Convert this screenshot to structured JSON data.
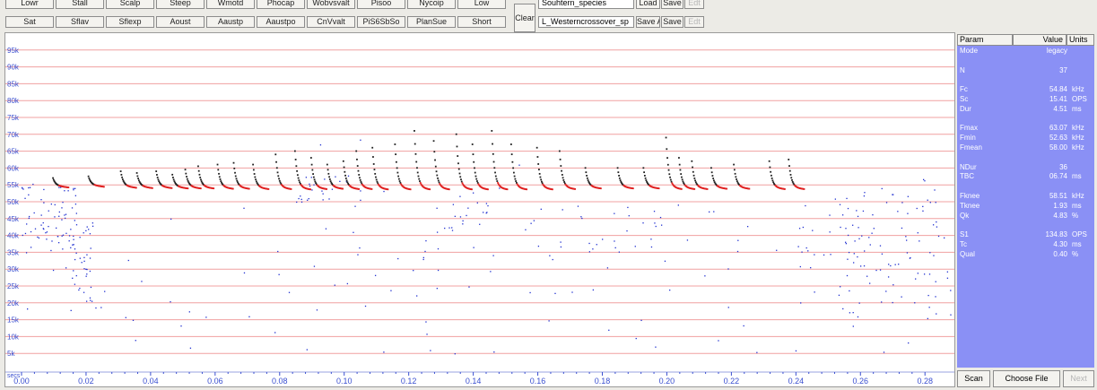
{
  "toolbar": {
    "row1": [
      "Lowr",
      "Stall",
      "Scalp",
      "Steep",
      "Wmotd",
      "Phocap",
      "Wobvsvalt",
      "Pisoo",
      "Nycoip",
      "Low"
    ],
    "row2": [
      "Sat",
      "Sflav",
      "Sflexp",
      "Aoust",
      "Aaustp",
      "Aaustpo",
      "CnVvalt",
      "PiS6SbSo",
      "PlanSue",
      "Short"
    ],
    "clear_label": "Clear",
    "file_field_top": "Souhtern_species",
    "file_field_bottom": "L_Westerncrossover_sp",
    "load_label": "Load",
    "save_label_top": "Save",
    "edit_label_top": "Edt",
    "save_as_label": "Save As",
    "save_label_bottom": "Save",
    "edit_label_bottom": "Edt"
  },
  "panel": {
    "headers": [
      "Param",
      "Value",
      "Units"
    ],
    "rows": [
      {
        "name": "Mode",
        "value": "legacy",
        "unit": ""
      },
      {
        "name": "",
        "value": "",
        "unit": ""
      },
      {
        "name": "N",
        "value": "37",
        "unit": ""
      },
      {
        "name": "",
        "value": "",
        "unit": ""
      },
      {
        "name": "Fc",
        "value": "54.84",
        "unit": "kHz"
      },
      {
        "name": "Sc",
        "value": "15.41",
        "unit": "OPS"
      },
      {
        "name": "Dur",
        "value": "4.51",
        "unit": "ms"
      },
      {
        "name": "",
        "value": "",
        "unit": ""
      },
      {
        "name": "Fmax",
        "value": "63.07",
        "unit": "kHz"
      },
      {
        "name": "Fmin",
        "value": "52.63",
        "unit": "kHz"
      },
      {
        "name": "Fmean",
        "value": "58.00",
        "unit": "kHz"
      },
      {
        "name": "",
        "value": "",
        "unit": ""
      },
      {
        "name": "NDur",
        "value": "36",
        "unit": ""
      },
      {
        "name": "TBC",
        "value": "06.74",
        "unit": "ms"
      },
      {
        "name": "",
        "value": "",
        "unit": ""
      },
      {
        "name": "Fknee",
        "value": "58.51",
        "unit": "kHz"
      },
      {
        "name": "Tknee",
        "value": "1.93",
        "unit": "ms"
      },
      {
        "name": "Qk",
        "value": "4.83",
        "unit": "%"
      },
      {
        "name": "",
        "value": "",
        "unit": ""
      },
      {
        "name": "S1",
        "value": "134.83",
        "unit": "OPS"
      },
      {
        "name": "Tc",
        "value": "4.30",
        "unit": "ms"
      },
      {
        "name": "Qual",
        "value": "0.40",
        "unit": "%"
      }
    ],
    "scan_label": "Scan",
    "choose_label": "Choose File",
    "next_label": "Next"
  },
  "chart_data": {
    "type": "scatter",
    "xlabel": "secs",
    "ylabel": "",
    "xlim": [
      0.0,
      0.288
    ],
    "ylim": [
      0,
      100000
    ],
    "y_ticks": [
      5000,
      10000,
      15000,
      20000,
      25000,
      30000,
      35000,
      40000,
      45000,
      50000,
      55000,
      60000,
      65000,
      70000,
      75000,
      80000,
      85000,
      90000,
      95000
    ],
    "y_tick_labels": [
      "5k",
      "10k",
      "15k",
      "20k",
      "25k",
      "30k",
      "35k",
      "40k",
      "45k",
      "50k",
      "55k",
      "60k",
      "65k",
      "70k",
      "75k",
      "80k",
      "85k",
      "90k",
      "95k"
    ],
    "x_ticks": [
      0.0,
      0.02,
      0.04,
      0.06,
      0.08,
      0.1,
      0.12,
      0.14,
      0.16,
      0.18,
      0.2,
      0.22,
      0.24,
      0.26,
      0.28
    ],
    "x_tick_labels": [
      "0.00",
      "0.02",
      "0.04",
      "0.06",
      "0.08",
      "0.10",
      "0.12",
      "0.14",
      "0.16",
      "0.18",
      "0.20",
      "0.22",
      "0.24",
      "0.26",
      "0.28"
    ],
    "grid": "horizontal",
    "colors": {
      "gridline": "#f0a0a0",
      "call": "#e02020",
      "call_start": "#202020",
      "noise": "#2030d0",
      "axis_text": "#3a4fd0"
    },
    "calls": [
      {
        "t": 0.0095,
        "fmax": 57000,
        "fmin": 54800
      },
      {
        "t": 0.0205,
        "fmax": 57500,
        "fmin": 55000
      },
      {
        "t": 0.0305,
        "fmax": 59000,
        "fmin": 54700
      },
      {
        "t": 0.0355,
        "fmax": 58500,
        "fmin": 54600
      },
      {
        "t": 0.0415,
        "fmax": 59000,
        "fmin": 54600
      },
      {
        "t": 0.0465,
        "fmax": 58000,
        "fmin": 54500
      },
      {
        "t": 0.0505,
        "fmax": 59500,
        "fmin": 54500
      },
      {
        "t": 0.0545,
        "fmax": 60500,
        "fmin": 54500
      },
      {
        "t": 0.0605,
        "fmax": 61000,
        "fmin": 54400
      },
      {
        "t": 0.0655,
        "fmax": 61500,
        "fmin": 54400
      },
      {
        "t": 0.0715,
        "fmax": 61000,
        "fmin": 54300
      },
      {
        "t": 0.0785,
        "fmax": 64000,
        "fmin": 54300
      },
      {
        "t": 0.0845,
        "fmax": 65000,
        "fmin": 54200
      },
      {
        "t": 0.0895,
        "fmax": 63000,
        "fmin": 54300
      },
      {
        "t": 0.0945,
        "fmax": 61000,
        "fmin": 54400
      },
      {
        "t": 0.0995,
        "fmax": 62000,
        "fmin": 54300
      },
      {
        "t": 0.1035,
        "fmax": 65000,
        "fmin": 54300
      },
      {
        "t": 0.1085,
        "fmax": 66000,
        "fmin": 54200
      },
      {
        "t": 0.1155,
        "fmax": 67000,
        "fmin": 54200
      },
      {
        "t": 0.1215,
        "fmax": 71000,
        "fmin": 54200
      },
      {
        "t": 0.1275,
        "fmax": 68000,
        "fmin": 54200
      },
      {
        "t": 0.1345,
        "fmax": 70000,
        "fmin": 54200
      },
      {
        "t": 0.1395,
        "fmax": 67000,
        "fmin": 54200
      },
      {
        "t": 0.1455,
        "fmax": 71000,
        "fmin": 54200
      },
      {
        "t": 0.1515,
        "fmax": 67000,
        "fmin": 54200
      },
      {
        "t": 0.1595,
        "fmax": 66000,
        "fmin": 54200
      },
      {
        "t": 0.1665,
        "fmax": 65000,
        "fmin": 54300
      },
      {
        "t": 0.1745,
        "fmax": 60000,
        "fmin": 54500
      },
      {
        "t": 0.1845,
        "fmax": 60000,
        "fmin": 54500
      },
      {
        "t": 0.1925,
        "fmax": 60000,
        "fmin": 54500
      },
      {
        "t": 0.1995,
        "fmax": 69000,
        "fmin": 54300
      },
      {
        "t": 0.2035,
        "fmax": 63000,
        "fmin": 54300
      },
      {
        "t": 0.2075,
        "fmax": 62000,
        "fmin": 54300
      },
      {
        "t": 0.2135,
        "fmax": 60000,
        "fmin": 54400
      },
      {
        "t": 0.2205,
        "fmax": 61000,
        "fmin": 54400
      },
      {
        "t": 0.2315,
        "fmax": 62000,
        "fmin": 54300
      },
      {
        "t": 0.2375,
        "fmax": 62500,
        "fmin": 54300
      }
    ],
    "noise_clusters": [
      {
        "t0": 0.0,
        "t1": 0.018,
        "f0": 35000,
        "f1": 56000,
        "n": 70
      },
      {
        "t0": 0.014,
        "t1": 0.022,
        "f0": 20000,
        "f1": 44000,
        "n": 35
      },
      {
        "t0": 0.085,
        "t1": 0.105,
        "f0": 50000,
        "f1": 58000,
        "n": 25
      },
      {
        "t0": 0.12,
        "t1": 0.145,
        "f0": 35000,
        "f1": 50000,
        "n": 20
      },
      {
        "t0": 0.16,
        "t1": 0.2,
        "f0": 35000,
        "f1": 50000,
        "n": 22
      },
      {
        "t0": 0.24,
        "t1": 0.262,
        "f0": 30000,
        "f1": 50000,
        "n": 30
      },
      {
        "t0": 0.252,
        "t1": 0.288,
        "f0": 15000,
        "f1": 58000,
        "n": 75
      },
      {
        "t0": 0.0,
        "t1": 0.288,
        "f0": 5000,
        "f1": 50000,
        "n": 110
      },
      {
        "t0": 0.09,
        "t1": 0.17,
        "f0": 20000,
        "f1": 70000,
        "n": 20
      }
    ]
  }
}
